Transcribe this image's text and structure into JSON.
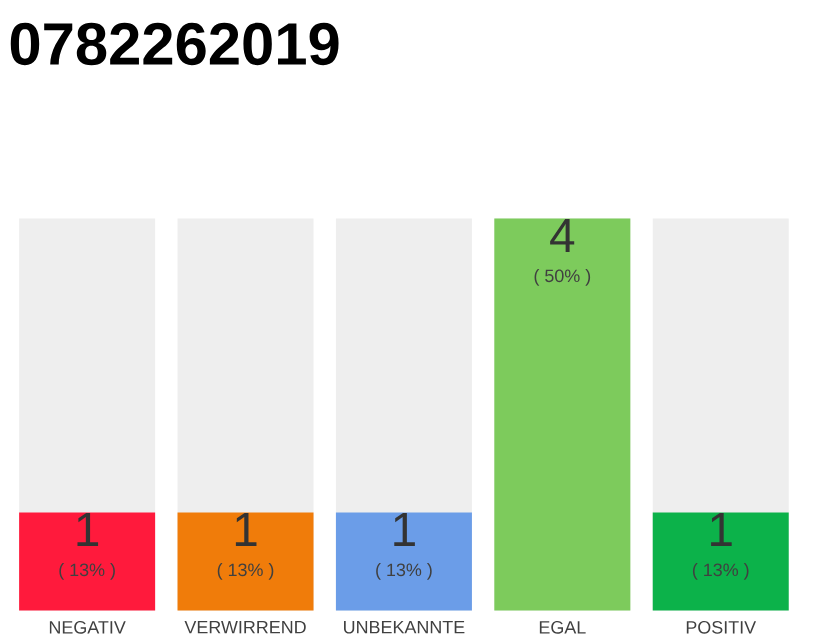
{
  "chart_data": {
    "type": "bar",
    "title": "0782262019",
    "categories": [
      "NEGATIV",
      "VERWIRREND",
      "UNBEKANNTE",
      "EGAL",
      "POSITIV"
    ],
    "values": [
      1,
      1,
      1,
      4,
      1
    ],
    "colors": [
      "#ff1a3c",
      "#f07c0a",
      "#6b9de8",
      "#7dcb5c",
      "#0cb24a"
    ],
    "data_labels": true,
    "annotations": [
      {
        "text": "( 13% )",
        "x": "NEGATIV",
        "y": 1
      },
      {
        "text": "( 13% )",
        "x": "VERWIRREND",
        "y": 1
      },
      {
        "text": "( 13% )",
        "x": "UNBEKANNTE",
        "y": 1
      },
      {
        "text": "( 50% )",
        "x": "EGAL",
        "y": 4
      },
      {
        "text": "( 13% )",
        "x": "POSITIV",
        "y": 1
      }
    ]
  }
}
